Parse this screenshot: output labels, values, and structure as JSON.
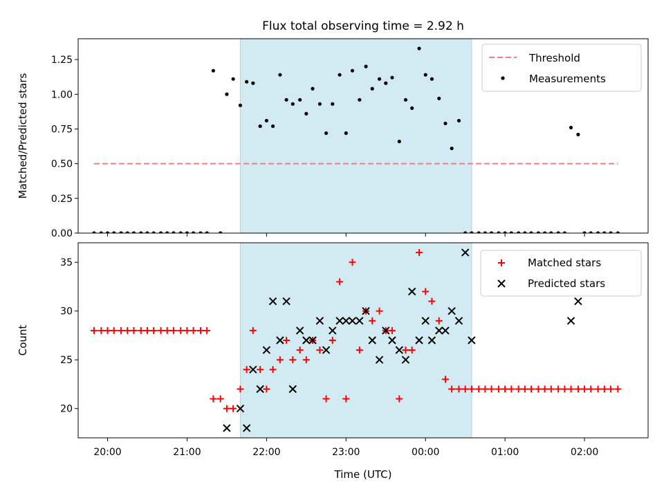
{
  "chart_data": [
    {
      "type": "scatter",
      "title": "Flux total observing time = 2.92 h",
      "xlabel": "",
      "ylabel": "Matched/Predicted stars",
      "ylim": [
        0,
        1.4
      ],
      "yticks": [
        0,
        0.25,
        0.5,
        0.75,
        1.0,
        1.25
      ],
      "ytick_labels": [
        "0.00",
        "0.25",
        "0.50",
        "0.75",
        "1.00",
        "1.25"
      ],
      "xlim_hours": [
        19.63,
        26.8
      ],
      "shaded_span_hours": [
        21.67,
        24.58
      ],
      "shaded_color": "#add8e6",
      "threshold": {
        "name": "Threshold",
        "value": 0.5,
        "x_range_hours": [
          19.83,
          26.42
        ],
        "color": "#f08080"
      },
      "legend": {
        "placement": "top-right",
        "entries": [
          "Threshold",
          "Measurements"
        ]
      },
      "series": [
        {
          "name": "Measurements",
          "color": "#000000",
          "x": [
            19.83,
            19.92,
            20.0,
            20.08,
            20.17,
            20.25,
            20.33,
            20.42,
            20.5,
            20.58,
            20.67,
            20.75,
            20.83,
            20.92,
            21.0,
            21.08,
            21.17,
            21.25,
            21.33,
            21.42,
            21.5,
            21.58,
            21.67,
            21.75,
            21.83,
            21.92,
            22.0,
            22.08,
            22.17,
            22.25,
            22.33,
            22.42,
            22.5,
            22.58,
            22.67,
            22.75,
            22.83,
            22.92,
            23.0,
            23.08,
            23.17,
            23.25,
            23.33,
            23.42,
            23.5,
            23.58,
            23.67,
            23.75,
            23.83,
            23.92,
            24.0,
            24.08,
            24.17,
            24.25,
            24.33,
            24.42,
            24.5,
            24.58,
            24.67,
            24.75,
            24.83,
            24.92,
            25.0,
            25.08,
            25.17,
            25.25,
            25.33,
            25.42,
            25.5,
            25.58,
            25.67,
            25.75,
            25.83,
            25.92,
            26.0,
            26.08,
            26.17,
            26.25,
            26.33,
            26.42
          ],
          "y": [
            0,
            0,
            0,
            0,
            0,
            0,
            0,
            0,
            0,
            0,
            0,
            0,
            0,
            0,
            0,
            0,
            0,
            0,
            1.17,
            0,
            1.0,
            1.11,
            0.92,
            1.09,
            1.08,
            0.77,
            0.81,
            0.77,
            1.14,
            0.96,
            0.93,
            0.96,
            0.86,
            1.04,
            0.93,
            0.72,
            0.93,
            1.14,
            0.72,
            1.17,
            0.96,
            1.2,
            1.04,
            1.11,
            1.08,
            1.12,
            0.66,
            0.96,
            0.9,
            1.33,
            1.14,
            1.11,
            0.97,
            0.79,
            0.61,
            0.81,
            0,
            0,
            0,
            0,
            0,
            0,
            0,
            0,
            0,
            0,
            0,
            0,
            0,
            0,
            0,
            0,
            0.76,
            0.71,
            0,
            0,
            0,
            0,
            0,
            0
          ]
        }
      ]
    },
    {
      "type": "scatter",
      "title": "",
      "xlabel": "Time (UTC)",
      "ylabel": "Count",
      "ylim": [
        17,
        37
      ],
      "yticks": [
        20,
        25,
        30,
        35
      ],
      "ytick_labels": [
        "20",
        "25",
        "30",
        "35"
      ],
      "xlim_hours": [
        19.63,
        26.8
      ],
      "xticks_hours": [
        20,
        21,
        22,
        23,
        24,
        25,
        26
      ],
      "xtick_labels": [
        "20:00",
        "21:00",
        "22:00",
        "23:00",
        "00:00",
        "01:00",
        "02:00"
      ],
      "shaded_span_hours": [
        21.67,
        24.58
      ],
      "shaded_color": "#add8e6",
      "legend": {
        "placement": "top-right",
        "entries": [
          "Matched stars",
          "Predicted stars"
        ]
      },
      "series": [
        {
          "name": "Matched stars",
          "marker": "plus",
          "color": "#ff0000",
          "x": [
            19.83,
            19.92,
            20.0,
            20.08,
            20.17,
            20.25,
            20.33,
            20.42,
            20.5,
            20.58,
            20.67,
            20.75,
            20.83,
            20.92,
            21.0,
            21.08,
            21.17,
            21.25,
            21.33,
            21.42,
            21.5,
            21.58,
            21.67,
            21.75,
            21.83,
            21.92,
            22.0,
            22.08,
            22.17,
            22.25,
            22.33,
            22.42,
            22.5,
            22.58,
            22.67,
            22.75,
            22.83,
            22.92,
            23.0,
            23.08,
            23.17,
            23.25,
            23.33,
            23.42,
            23.5,
            23.58,
            23.67,
            23.75,
            23.83,
            23.92,
            24.0,
            24.08,
            24.17,
            24.25,
            24.33,
            24.42,
            24.5,
            24.58,
            24.67,
            24.75,
            24.83,
            24.92,
            25.0,
            25.08,
            25.17,
            25.25,
            25.33,
            25.42,
            25.5,
            25.58,
            25.67,
            25.75,
            25.83,
            25.92,
            26.0,
            26.08,
            26.17,
            26.25,
            26.33,
            26.42
          ],
          "y": [
            28,
            28,
            28,
            28,
            28,
            28,
            28,
            28,
            28,
            28,
            28,
            28,
            28,
            28,
            28,
            28,
            28,
            28,
            21,
            21,
            20,
            20,
            22,
            24,
            28,
            24,
            22,
            24,
            25,
            27,
            25,
            26,
            25,
            27,
            26,
            21,
            27,
            33,
            21,
            35,
            26,
            30,
            29,
            30,
            28,
            28,
            21,
            26,
            26,
            36,
            32,
            31,
            29,
            23,
            22,
            22,
            22,
            22,
            22,
            22,
            22,
            22,
            22,
            22,
            22,
            22,
            22,
            22,
            22,
            22,
            22,
            22,
            22,
            22,
            22,
            22,
            22,
            22,
            22,
            22
          ]
        },
        {
          "name": "Predicted stars",
          "marker": "x",
          "color": "#000000",
          "x": [
            21.5,
            21.67,
            21.75,
            21.83,
            21.92,
            22.0,
            22.08,
            22.17,
            22.25,
            22.33,
            22.42,
            22.5,
            22.58,
            22.67,
            22.75,
            22.83,
            22.92,
            23.0,
            23.08,
            23.17,
            23.25,
            23.33,
            23.42,
            23.5,
            23.58,
            23.67,
            23.75,
            23.83,
            23.92,
            24.0,
            24.08,
            24.17,
            24.25,
            24.33,
            24.42,
            24.5,
            24.58,
            25.83,
            25.92
          ],
          "y": [
            18,
            20,
            18,
            24,
            22,
            26,
            31,
            27,
            31,
            22,
            28,
            27,
            27,
            29,
            26,
            28,
            29,
            29,
            29,
            29,
            30,
            27,
            25,
            28,
            27,
            26,
            25,
            32,
            27,
            29,
            27,
            28,
            28,
            30,
            29,
            36,
            27,
            29,
            31
          ]
        }
      ]
    }
  ]
}
